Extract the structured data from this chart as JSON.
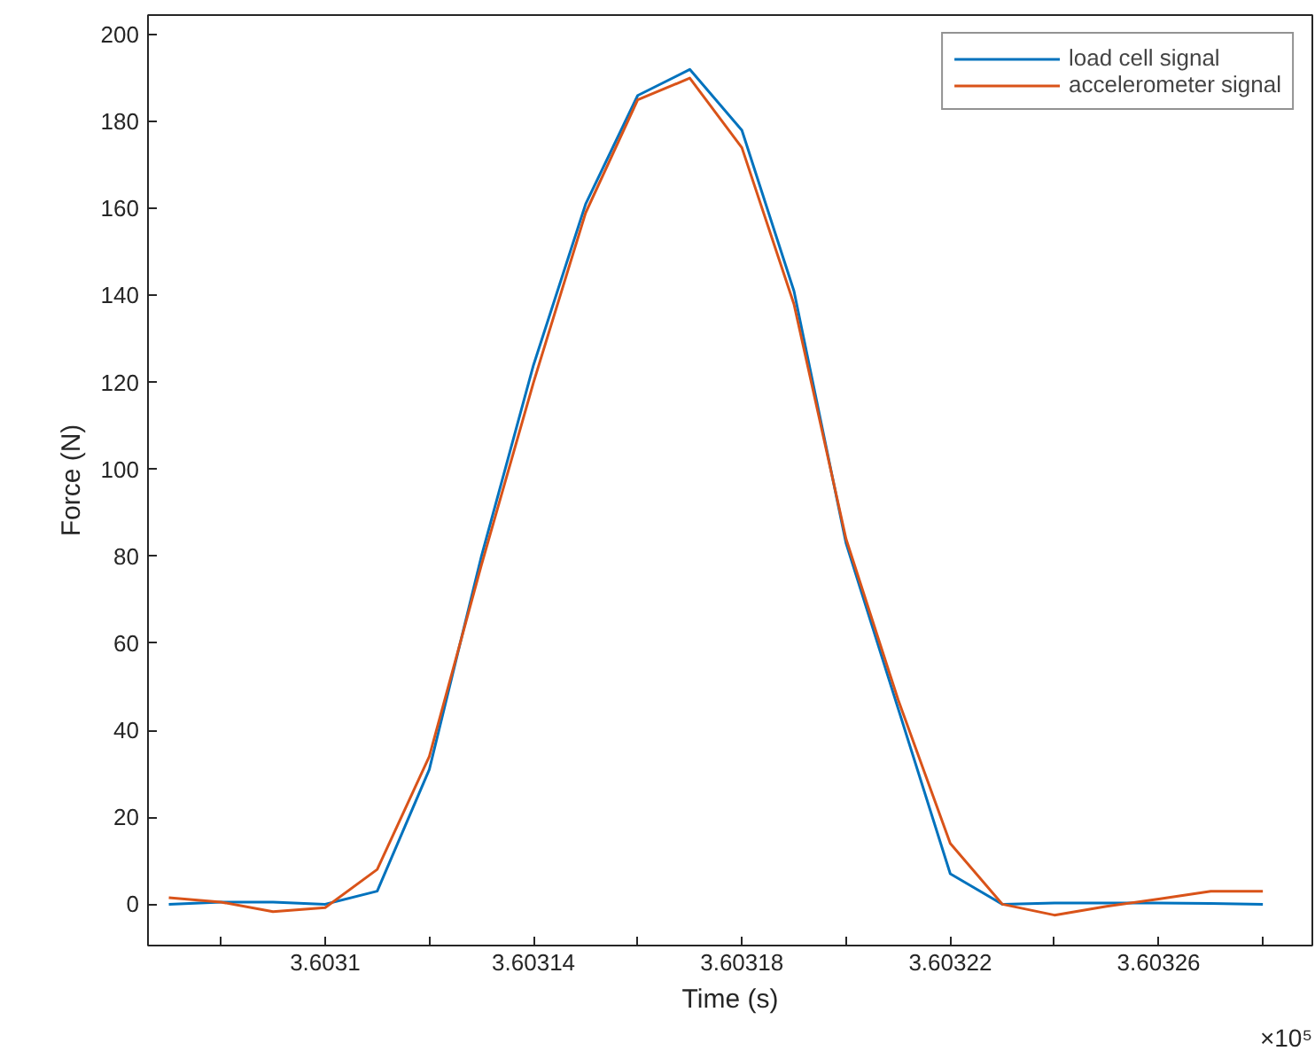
{
  "chart_data": {
    "type": "line",
    "xlabel": "Time (s)",
    "ylabel": "Force (N)",
    "x": [
      3.60307,
      3.60308,
      3.60309,
      3.6031,
      3.60311,
      3.60312,
      3.60313,
      3.60314,
      3.60315,
      3.60316,
      3.60317,
      3.60318,
      3.60319,
      3.6032,
      3.60321,
      3.60322,
      3.60323,
      3.60324,
      3.60325,
      3.60326,
      3.60327,
      3.60328
    ],
    "series": [
      {
        "name": "load cell signal",
        "color": "#0072bd",
        "values": [
          0,
          0.5,
          0.5,
          0,
          3,
          31,
          80,
          124,
          161,
          186,
          192,
          178,
          141,
          83,
          45,
          7,
          0,
          0.3,
          0.3,
          0.3,
          0.2,
          0
        ]
      },
      {
        "name": "accelerometer signal",
        "color": "#d95319",
        "values": [
          1.5,
          0.5,
          -1.7,
          -0.8,
          8,
          34,
          78,
          120,
          159,
          185,
          190,
          174,
          138,
          84,
          47,
          14,
          0,
          -2.5,
          -0.5,
          1.2,
          3,
          3
        ]
      }
    ],
    "xlim": [
      3.603066,
      3.6032895
    ],
    "ylim": [
      -9.5,
      204.5
    ],
    "xticks": [
      {
        "value": 3.60308,
        "label": null
      },
      3.6031,
      {
        "value": 3.60312,
        "label": null
      },
      3.60314,
      {
        "value": 3.60316,
        "label": null
      },
      3.60318,
      {
        "value": 3.6032,
        "label": null
      },
      3.60322,
      {
        "value": 3.60324,
        "label": null
      },
      3.60326,
      {
        "value": 3.60328,
        "label": null
      }
    ],
    "yticks": [
      0,
      20,
      40,
      60,
      80,
      100,
      120,
      140,
      160,
      180,
      200
    ],
    "annotations": [
      "×10⁵"
    ],
    "legend": "top right",
    "grid": false,
    "marker": "none",
    "line_style": "solid"
  }
}
